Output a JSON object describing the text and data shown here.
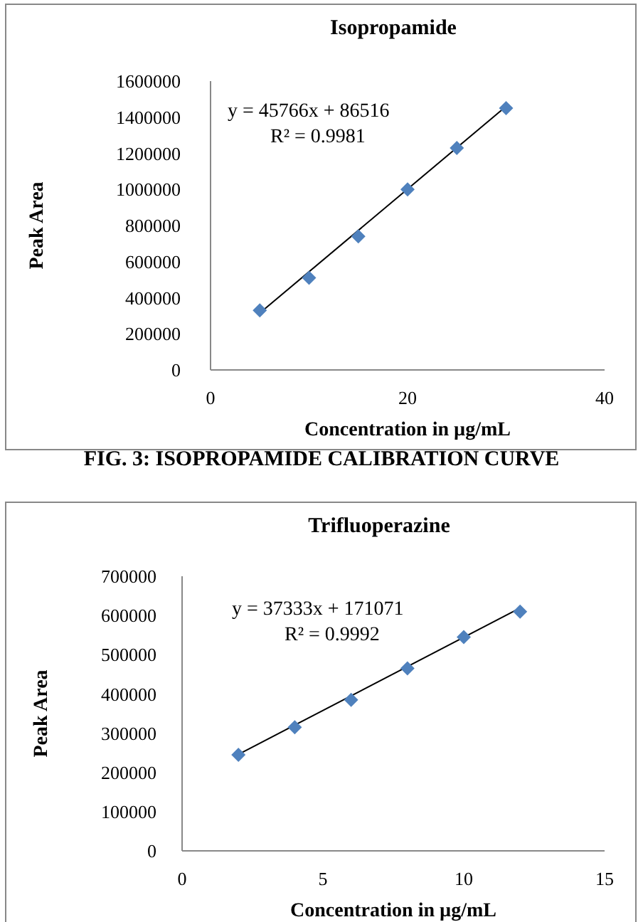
{
  "chart_data": [
    {
      "type": "scatter",
      "title": "Isopropamide",
      "xlabel": "Concentration in µg/mL",
      "ylabel": "Peak Area",
      "xlim": [
        0,
        40
      ],
      "xticks": [
        0,
        20,
        40
      ],
      "ylim": [
        0,
        1600000
      ],
      "yticks": [
        0,
        200000,
        400000,
        600000,
        800000,
        1000000,
        1200000,
        1400000,
        1600000
      ],
      "marker": "diamond",
      "annotations": [
        "y = 45766x + 86516",
        "R² = 0.9981",
        "FIG. 3: ISOPROPAMIDE CALIBRATION CURVE"
      ],
      "series": [
        {
          "color": "#4f81bd",
          "x": [
            5,
            10,
            15,
            20,
            25,
            30
          ],
          "values": [
            330000,
            510000,
            740000,
            1000000,
            1230000,
            1450000
          ]
        },
        {
          "type": "line",
          "color": "#000000",
          "marker": "none",
          "x": [
            5,
            30
          ],
          "values": [
            315000,
            1460000
          ]
        }
      ]
    },
    {
      "type": "scatter",
      "title": "Trifluoperazine",
      "xlabel": "Concentration in µg/mL",
      "ylabel": "Peak Area",
      "xlim": [
        0,
        15
      ],
      "xticks": [
        0,
        5,
        10,
        15
      ],
      "ylim": [
        0,
        700000
      ],
      "yticks": [
        0,
        100000,
        200000,
        300000,
        400000,
        500000,
        600000,
        700000
      ],
      "marker": "diamond",
      "annotations": [
        "y = 37333x + 171071",
        "R² = 0.9992"
      ],
      "series": [
        {
          "color": "#4f81bd",
          "x": [
            2,
            4,
            6,
            8,
            10,
            12
          ],
          "values": [
            245000,
            315000,
            385000,
            465000,
            545000,
            610000
          ]
        },
        {
          "type": "line",
          "color": "#000000",
          "marker": "none",
          "x": [
            2,
            12
          ],
          "values": [
            246000,
            619000
          ]
        }
      ]
    }
  ]
}
